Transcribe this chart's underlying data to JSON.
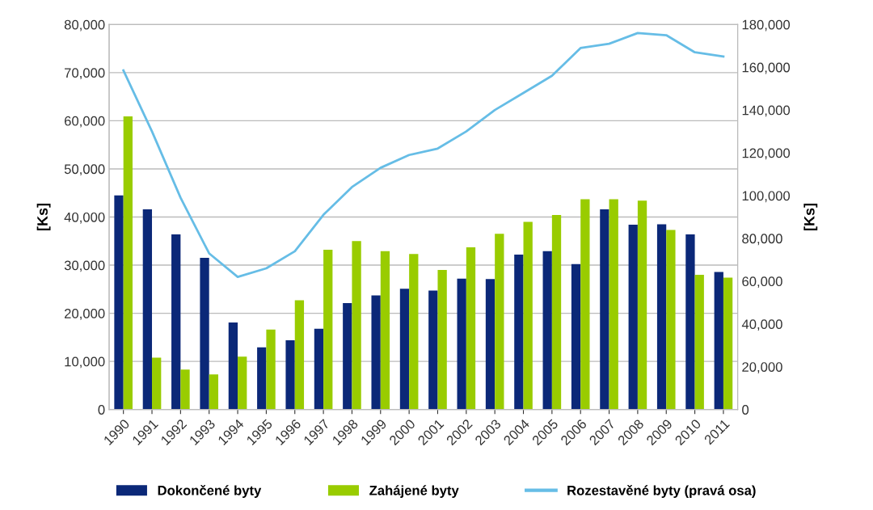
{
  "chart_data": {
    "type": "bar",
    "categories": [
      "1990",
      "1991",
      "1992",
      "1993",
      "1994",
      "1995",
      "1996",
      "1997",
      "1998",
      "1999",
      "2000",
      "2001",
      "2002",
      "2003",
      "2004",
      "2005",
      "2006",
      "2007",
      "2008",
      "2009",
      "2010",
      "2011"
    ],
    "series": [
      {
        "name": "Dokončené byty",
        "color": "#0b2878",
        "values": [
          44500,
          41600,
          36400,
          31500,
          18100,
          12900,
          14400,
          16800,
          22100,
          23700,
          25100,
          24700,
          27200,
          27100,
          32200,
          32900,
          30200,
          41600,
          38400,
          38500,
          36400,
          28600
        ]
      },
      {
        "name": "Zahájené byty",
        "color": "#99cc00",
        "values": [
          60900,
          10800,
          8300,
          7300,
          11000,
          16600,
          22700,
          33200,
          35000,
          32900,
          32300,
          29000,
          33700,
          36500,
          39000,
          40400,
          43700,
          43700,
          43400,
          37300,
          28000,
          27400
        ]
      },
      {
        "name": "Rozestavěné byty (pravá osa)",
        "type": "line",
        "axis": "y2",
        "color": "#66bde6",
        "values": [
          158500,
          130000,
          99000,
          73000,
          62000,
          66000,
          74000,
          91000,
          104000,
          113000,
          119000,
          122000,
          130000,
          140000,
          148000,
          156000,
          169000,
          171000,
          176000,
          175000,
          167000,
          165000
        ]
      }
    ],
    "ylabel": "[Ks]",
    "y2label": "[Ks]",
    "ylim": [
      0,
      80000
    ],
    "yticks": [
      {
        "value": 0,
        "label": "0"
      },
      {
        "value": 10000,
        "label": "10,000"
      },
      {
        "value": 20000,
        "label": "20,000"
      },
      {
        "value": 30000,
        "label": "30,000"
      },
      {
        "value": 40000,
        "label": "40,000"
      },
      {
        "value": 50000,
        "label": "50,000"
      },
      {
        "value": 60000,
        "label": "60,000"
      },
      {
        "value": 70000,
        "label": "70,000"
      },
      {
        "value": 80000,
        "label": "80,000"
      }
    ],
    "y2lim": [
      0,
      180000
    ],
    "y2ticks": [
      {
        "value": 0,
        "label": "0"
      },
      {
        "value": 20000,
        "label": "20,000"
      },
      {
        "value": 40000,
        "label": "40,000"
      },
      {
        "value": 60000,
        "label": "60,000"
      },
      {
        "value": 80000,
        "label": "80,000"
      },
      {
        "value": 100000,
        "label": "100,000"
      },
      {
        "value": 120000,
        "label": "120,000"
      },
      {
        "value": 140000,
        "label": "140,000"
      },
      {
        "value": 160000,
        "label": "160,000"
      },
      {
        "value": 180000,
        "label": "180,000"
      }
    ],
    "grid": "y",
    "legend": "bottom"
  }
}
